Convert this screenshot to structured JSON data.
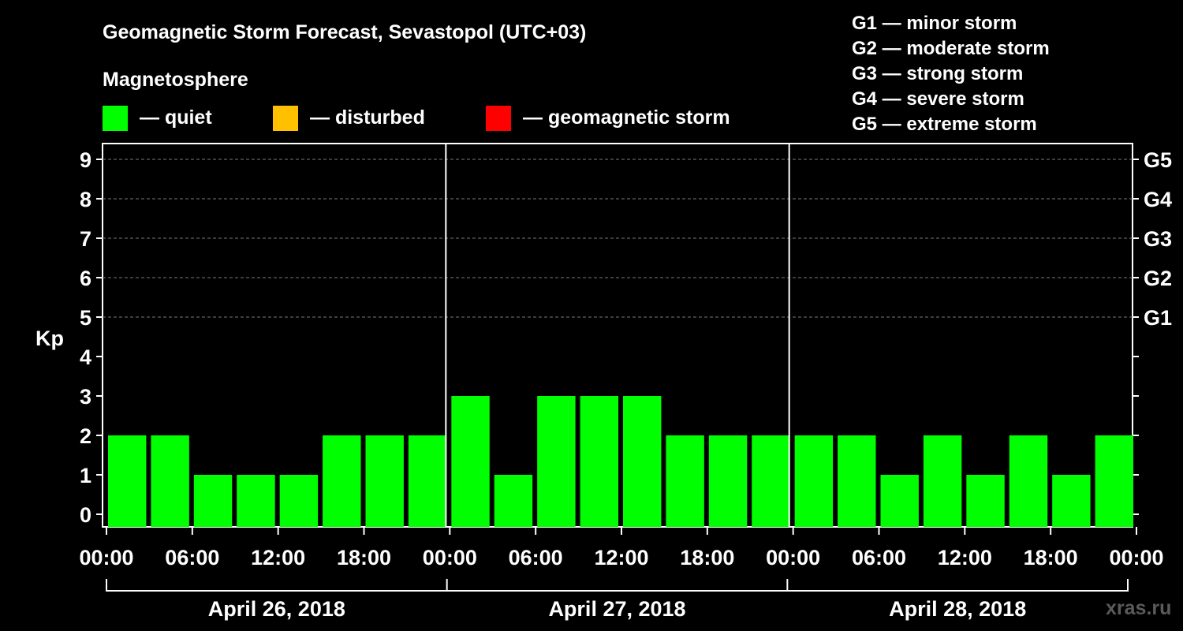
{
  "title": "Geomagnetic Storm Forecast, Sevastopol (UTC+03)",
  "subtitle": "Magnetosphere",
  "colors": {
    "quiet": "#00ff00",
    "disturbed": "#ffc000",
    "storm": "#ff0000",
    "background": "#000000",
    "foreground": "#ffffff"
  },
  "legend": [
    {
      "key": "quiet",
      "label": "— quiet",
      "color": "#00ff00"
    },
    {
      "key": "disturbed",
      "label": "— disturbed",
      "color": "#ffc000"
    },
    {
      "key": "storm",
      "label": "— geomagnetic storm",
      "color": "#ff0000"
    }
  ],
  "storm_scale": [
    {
      "level": "G1",
      "text": "G1 — minor storm",
      "kp": 5
    },
    {
      "level": "G2",
      "text": "G2 — moderate storm",
      "kp": 6
    },
    {
      "level": "G3",
      "text": "G3 — strong storm",
      "kp": 7
    },
    {
      "level": "G4",
      "text": "G4 — severe storm",
      "kp": 8
    },
    {
      "level": "G5",
      "text": "G5 — extreme storm",
      "kp": 9
    }
  ],
  "watermark": "xras.ru",
  "chart_data": {
    "type": "bar",
    "ylabel": "Kp",
    "ylim": [
      0,
      9
    ],
    "yticks": [
      0,
      1,
      2,
      3,
      4,
      5,
      6,
      7,
      8,
      9
    ],
    "grid": true,
    "xticks": [
      "00:00",
      "06:00",
      "12:00",
      "18:00",
      "00:00",
      "06:00",
      "12:00",
      "18:00",
      "00:00",
      "06:00",
      "12:00",
      "18:00",
      "00:00"
    ],
    "days": [
      "April 26, 2018",
      "April 27, 2018",
      "April 28, 2018"
    ],
    "interval_hours": 3,
    "values": [
      2,
      2,
      1,
      1,
      1,
      2,
      2,
      2,
      3,
      1,
      3,
      3,
      3,
      2,
      2,
      2,
      2,
      2,
      1,
      2,
      1,
      2,
      1,
      2
    ]
  }
}
